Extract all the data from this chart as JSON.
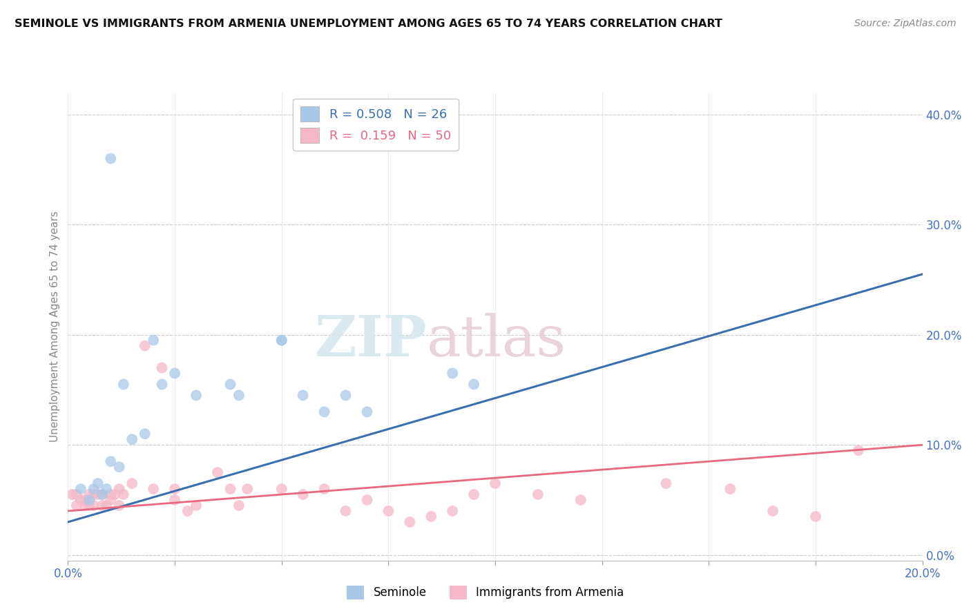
{
  "title": "SEMINOLE VS IMMIGRANTS FROM ARMENIA UNEMPLOYMENT AMONG AGES 65 TO 74 YEARS CORRELATION CHART",
  "source": "Source: ZipAtlas.com",
  "ylabel": "Unemployment Among Ages 65 to 74 years",
  "xlim": [
    0.0,
    0.2
  ],
  "ylim": [
    -0.005,
    0.42
  ],
  "xticks": [
    0.0,
    0.025,
    0.05,
    0.075,
    0.1,
    0.125,
    0.15,
    0.175,
    0.2
  ],
  "xtick_labels": [
    "0.0%",
    "",
    "",
    "",
    "",
    "",
    "",
    "",
    "20.0%"
  ],
  "ytick_labels_right": [
    "0.0%",
    "10.0%",
    "20.0%",
    "30.0%",
    "40.0%"
  ],
  "yticks_right": [
    0.0,
    0.1,
    0.2,
    0.3,
    0.4
  ],
  "blue_R": 0.508,
  "blue_N": 26,
  "pink_R": 0.159,
  "pink_N": 50,
  "blue_color": "#a8c8e8",
  "pink_color": "#f4b8c8",
  "blue_line_color": "#3a6fad",
  "pink_line_color": "#e86880",
  "watermark_zip": "ZIP",
  "watermark_atlas": "atlas",
  "blue_x": [
    0.01,
    0.013,
    0.02,
    0.022,
    0.025,
    0.03,
    0.038,
    0.04,
    0.05,
    0.05,
    0.055,
    0.06,
    0.065,
    0.07,
    0.09,
    0.095,
    0.003,
    0.005,
    0.006,
    0.007,
    0.008,
    0.009,
    0.01,
    0.012,
    0.015,
    0.018
  ],
  "blue_y": [
    0.36,
    0.155,
    0.195,
    0.155,
    0.165,
    0.145,
    0.155,
    0.145,
    0.195,
    0.195,
    0.145,
    0.13,
    0.145,
    0.13,
    0.165,
    0.155,
    0.06,
    0.05,
    0.06,
    0.065,
    0.055,
    0.06,
    0.085,
    0.08,
    0.105,
    0.11
  ],
  "pink_x": [
    0.001,
    0.002,
    0.002,
    0.003,
    0.004,
    0.004,
    0.005,
    0.005,
    0.006,
    0.006,
    0.007,
    0.008,
    0.008,
    0.009,
    0.01,
    0.01,
    0.011,
    0.012,
    0.012,
    0.013,
    0.015,
    0.018,
    0.02,
    0.022,
    0.025,
    0.025,
    0.028,
    0.03,
    0.035,
    0.038,
    0.04,
    0.042,
    0.05,
    0.055,
    0.06,
    0.065,
    0.07,
    0.075,
    0.08,
    0.085,
    0.09,
    0.095,
    0.1,
    0.11,
    0.12,
    0.14,
    0.155,
    0.165,
    0.175,
    0.185
  ],
  "pink_y": [
    0.055,
    0.045,
    0.055,
    0.05,
    0.045,
    0.05,
    0.055,
    0.045,
    0.055,
    0.045,
    0.055,
    0.045,
    0.055,
    0.045,
    0.055,
    0.05,
    0.055,
    0.06,
    0.045,
    0.055,
    0.065,
    0.19,
    0.06,
    0.17,
    0.06,
    0.05,
    0.04,
    0.045,
    0.075,
    0.06,
    0.045,
    0.06,
    0.06,
    0.055,
    0.06,
    0.04,
    0.05,
    0.04,
    0.03,
    0.035,
    0.04,
    0.055,
    0.065,
    0.055,
    0.05,
    0.065,
    0.06,
    0.04,
    0.035,
    0.095
  ],
  "blue_line_x": [
    0.0,
    0.2
  ],
  "blue_line_y": [
    0.03,
    0.255
  ],
  "pink_line_x": [
    0.0,
    0.2
  ],
  "pink_line_y": [
    0.04,
    0.1
  ]
}
